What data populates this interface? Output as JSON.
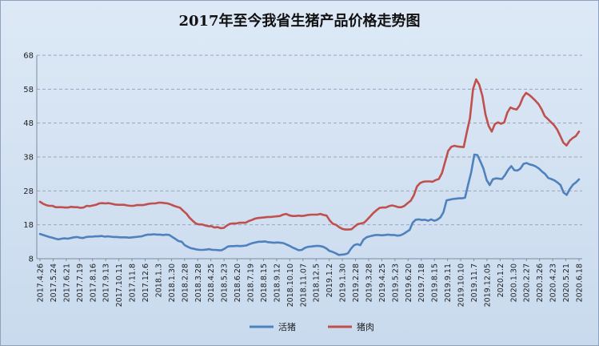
{
  "colors": {
    "live_pig": "#4f81bd",
    "pork": "#c0504d",
    "grid": "#9aa7b8",
    "background": "#d6e4f3"
  },
  "chart_data": {
    "type": "line",
    "title": "2017年至今我省生猪产品价格走势图",
    "grid": true,
    "legend_position": "bottom",
    "ylim": [
      8,
      68
    ],
    "yticks": [
      8,
      18,
      28,
      38,
      48,
      58,
      68
    ],
    "x_tick_labels": [
      "2017.4.26",
      "2017.5.24",
      "2017.6.21",
      "2017.7.19",
      "2017.8.16",
      "2017.9.13",
      "2017.10.11",
      "2017.11.8",
      "2017.12.6",
      "2018.1.3",
      "2018.1.30",
      "2018.2.28",
      "2018.3.28",
      "2018.4.25",
      "2018.5.23",
      "2018.6.20",
      "2018.7.19",
      "2018.8.15",
      "2018.9.12",
      "2018.10.10",
      "2018.11.07",
      "2018.12.5",
      "2019.1.2",
      "2019.1.30",
      "2019.2.28",
      "2019.3.28",
      "2019.4.25",
      "2019.5.23",
      "2019.6.20",
      "2019.7.18",
      "2019.8.15",
      "2019.9.11",
      "2019.10.10",
      "2019.11.7",
      "2019.12.05",
      "2020.1.2",
      "2020.1.30",
      "2020.2.27",
      "2020.3.26",
      "2020.4.23",
      "2020.5.21",
      "2020.6.18"
    ],
    "series": [
      {
        "name": "活猪",
        "color": "#4f81bd",
        "values": [
          15.3,
          15.0,
          14.7,
          14.4,
          14.2,
          13.9,
          13.7,
          13.9,
          14.0,
          13.9,
          14.1,
          14.3,
          14.4,
          14.2,
          14.1,
          14.4,
          14.5,
          14.5,
          14.6,
          14.6,
          14.7,
          14.5,
          14.6,
          14.5,
          14.4,
          14.4,
          14.3,
          14.3,
          14.3,
          14.2,
          14.3,
          14.4,
          14.5,
          14.6,
          14.9,
          15.1,
          15.1,
          15.2,
          15.1,
          15.1,
          15.0,
          15.1,
          15.0,
          14.4,
          13.8,
          13.2,
          13.0,
          12.0,
          11.5,
          11.1,
          10.9,
          10.7,
          10.6,
          10.6,
          10.7,
          10.8,
          10.6,
          10.6,
          10.5,
          10.5,
          11.0,
          11.6,
          11.7,
          11.7,
          11.8,
          11.7,
          11.8,
          11.9,
          12.3,
          12.6,
          12.8,
          13.0,
          13.0,
          13.1,
          12.9,
          12.8,
          12.7,
          12.8,
          12.7,
          12.6,
          12.2,
          11.8,
          11.3,
          10.9,
          10.5,
          10.6,
          11.2,
          11.5,
          11.6,
          11.7,
          11.8,
          11.7,
          11.5,
          11.0,
          10.3,
          10.0,
          9.6,
          9.1,
          9.2,
          9.3,
          9.6,
          11.0,
          12.0,
          12.3,
          12.0,
          13.6,
          14.3,
          14.6,
          14.8,
          15.0,
          15.0,
          14.9,
          15.0,
          15.1,
          15.0,
          15.0,
          14.8,
          14.9,
          15.3,
          15.9,
          16.5,
          18.6,
          19.5,
          19.6,
          19.4,
          19.5,
          19.2,
          19.6,
          19.2,
          19.5,
          20.2,
          21.7,
          25.2,
          25.4,
          25.6,
          25.7,
          25.8,
          25.8,
          26.0,
          29.8,
          33.5,
          38.7,
          38.6,
          36.6,
          34.5,
          31.2,
          29.7,
          31.4,
          31.7,
          31.6,
          31.5,
          32.7,
          34.2,
          35.3,
          34.1,
          34.0,
          34.6,
          36.0,
          36.2,
          35.8,
          35.6,
          35.2,
          34.6,
          33.7,
          33.0,
          31.8,
          31.5,
          31.1,
          30.5,
          29.7,
          27.5,
          26.8,
          28.5,
          29.8,
          30.5,
          31.4
        ]
      },
      {
        "name": "猪肉",
        "color": "#c0504d",
        "values": [
          24.8,
          24.2,
          23.8,
          23.6,
          23.6,
          23.2,
          23.2,
          23.2,
          23.1,
          23.1,
          23.3,
          23.2,
          23.2,
          23.0,
          23.1,
          23.6,
          23.5,
          23.7,
          23.9,
          24.3,
          24.4,
          24.3,
          24.4,
          24.2,
          24.0,
          23.9,
          23.9,
          23.9,
          23.7,
          23.6,
          23.6,
          23.8,
          23.8,
          23.8,
          24.0,
          24.2,
          24.3,
          24.3,
          24.5,
          24.5,
          24.4,
          24.3,
          24.0,
          23.6,
          23.3,
          23.0,
          22.1,
          21.3,
          20.1,
          19.2,
          18.4,
          18.1,
          18.1,
          17.8,
          17.6,
          17.6,
          17.2,
          17.3,
          17.0,
          17.1,
          17.8,
          18.3,
          18.4,
          18.4,
          18.6,
          18.6,
          18.6,
          19.1,
          19.4,
          19.8,
          20.0,
          20.1,
          20.2,
          20.3,
          20.3,
          20.4,
          20.5,
          20.6,
          21.0,
          21.2,
          20.8,
          20.6,
          20.6,
          20.7,
          20.6,
          20.7,
          20.9,
          21.0,
          21.0,
          21.0,
          21.2,
          20.9,
          20.7,
          19.3,
          18.3,
          18.0,
          17.3,
          16.8,
          16.6,
          16.6,
          16.7,
          17.5,
          18.2,
          18.4,
          18.6,
          19.5,
          20.5,
          21.5,
          22.3,
          23.0,
          23.1,
          23.1,
          23.5,
          23.7,
          23.5,
          23.2,
          23.2,
          23.6,
          24.4,
          25.1,
          26.7,
          29.3,
          30.3,
          30.7,
          30.8,
          30.8,
          30.7,
          31.2,
          31.5,
          33.2,
          36.5,
          39.8,
          41.0,
          41.3,
          41.1,
          41.0,
          40.9,
          45.3,
          49.4,
          58.0,
          60.9,
          59.3,
          56.0,
          50.5,
          47.2,
          45.5,
          47.7,
          48.2,
          47.8,
          48.2,
          51.1,
          52.6,
          52.2,
          52.0,
          53.3,
          55.6,
          56.9,
          56.3,
          55.5,
          54.6,
          53.6,
          52.1,
          50.1,
          49.2,
          48.3,
          47.4,
          46.1,
          44.2,
          42.2,
          41.4,
          42.8,
          43.6,
          44.2,
          45.5
        ]
      }
    ]
  }
}
